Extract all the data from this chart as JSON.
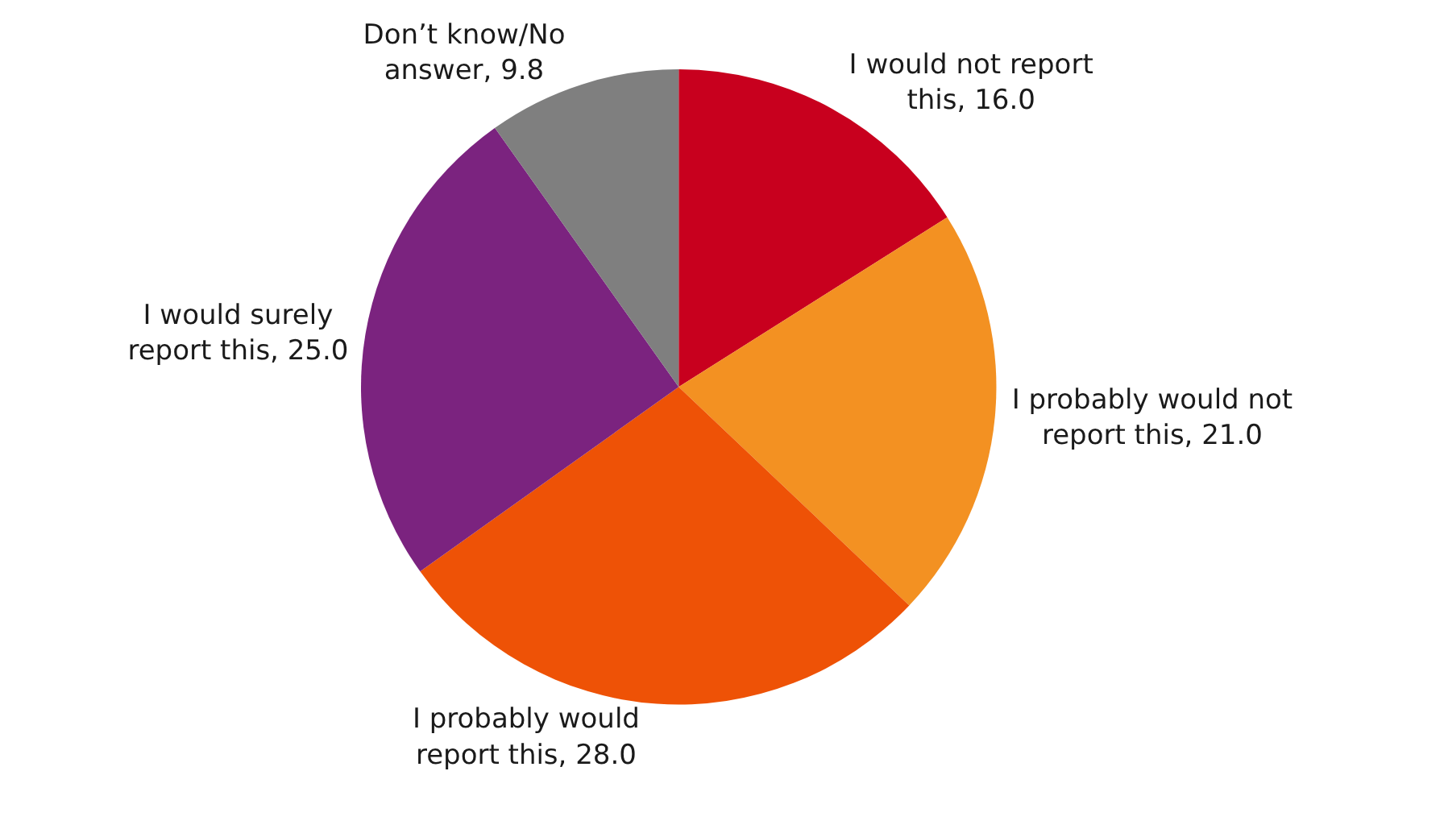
{
  "chart_data": {
    "type": "pie",
    "categories": [
      "I would not report this",
      "I probably would not report this",
      "I probably would report this",
      "I would surely report this",
      "Don’t know/No answer"
    ],
    "values": [
      16.0,
      21.0,
      28.0,
      25.0,
      9.8
    ],
    "colors": [
      "#c8001e",
      "#f39122",
      "#ee5206",
      "#7b237f",
      "#7f7f7f"
    ],
    "value_labels": [
      "16.0",
      "21.0",
      "28.0",
      "25.0",
      "9.8"
    ],
    "legend": false
  }
}
